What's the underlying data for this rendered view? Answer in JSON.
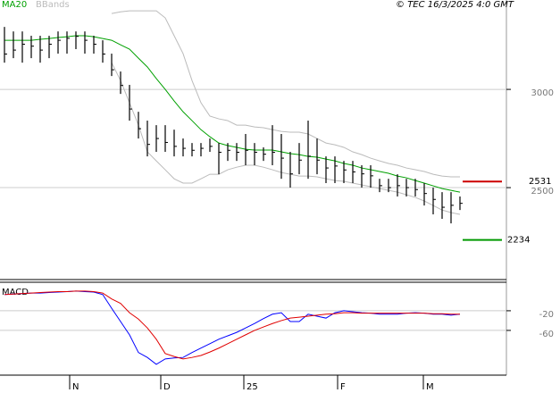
{
  "chart_data": [
    {
      "type": "ohlc",
      "credit": "© TEC 16/3/2025 4:0 GMT",
      "bar_color": "#000000",
      "high": [
        3318,
        3295,
        3295,
        3273,
        3273,
        3273,
        3295,
        3295,
        3295,
        3295,
        3273,
        3250,
        3182,
        3091,
        3023,
        2886,
        2841,
        2818,
        2818,
        2795,
        2750,
        2727,
        2727,
        2750,
        2727,
        2727,
        2727,
        2773,
        2727,
        2705,
        2818,
        2773,
        2682,
        2727,
        2841,
        2750,
        2659,
        2659,
        2636,
        2636,
        2614,
        2614,
        2545,
        2545,
        2568,
        2545,
        2545,
        2523,
        2500,
        2477,
        2477,
        2455
      ],
      "low": [
        3136,
        3159,
        3136,
        3159,
        3136,
        3159,
        3182,
        3182,
        3205,
        3182,
        3182,
        3136,
        3068,
        2977,
        2841,
        2750,
        2659,
        2682,
        2682,
        2659,
        2659,
        2659,
        2659,
        2682,
        2568,
        2636,
        2636,
        2614,
        2614,
        2636,
        2614,
        2545,
        2500,
        2568,
        2545,
        2568,
        2523,
        2523,
        2523,
        2523,
        2500,
        2500,
        2477,
        2477,
        2455,
        2455,
        2455,
        2409,
        2364,
        2341,
        2318,
        2386
      ],
      "close": [
        3180,
        3200,
        3230,
        3220,
        3200,
        3230,
        3250,
        3260,
        3270,
        3250,
        3230,
        3180,
        3100,
        3020,
        2900,
        2800,
        2720,
        2750,
        2730,
        2710,
        2700,
        2690,
        2700,
        2710,
        2680,
        2690,
        2680,
        2690,
        2680,
        2670,
        2680,
        2650,
        2570,
        2640,
        2660,
        2640,
        2600,
        2610,
        2590,
        2580,
        2570,
        2560,
        2510,
        2500,
        2510,
        2500,
        2490,
        2470,
        2440,
        2400,
        2410,
        2420
      ],
      "series": [
        {
          "name": "MA20",
          "color": "#00a000",
          "values": [
            3250,
            3250,
            3250,
            3250,
            3255,
            3259,
            3264,
            3268,
            3273,
            3273,
            3268,
            3259,
            3250,
            3227,
            3205,
            3159,
            3114,
            3055,
            3000,
            2941,
            2886,
            2841,
            2795,
            2759,
            2727,
            2714,
            2705,
            2695,
            2691,
            2691,
            2691,
            2682,
            2673,
            2668,
            2659,
            2655,
            2645,
            2636,
            2623,
            2614,
            2600,
            2591,
            2582,
            2573,
            2559,
            2550,
            2536,
            2523,
            2509,
            2495,
            2486,
            2477
          ]
        },
        {
          "name": "BBands",
          "color": "#bbbbbb",
          "upper": [
            null,
            null,
            null,
            null,
            null,
            null,
            null,
            null,
            null,
            null,
            null,
            null,
            3386,
            3395,
            3400,
            3400,
            3400,
            3400,
            3364,
            3273,
            3182,
            3045,
            2932,
            2864,
            2850,
            2841,
            2818,
            2818,
            2809,
            2805,
            2795,
            2786,
            2782,
            2782,
            2773,
            2750,
            2727,
            2718,
            2705,
            2682,
            2668,
            2650,
            2636,
            2623,
            2614,
            2600,
            2591,
            2582,
            2568,
            2559,
            2555,
            2555
          ],
          "lower": [
            null,
            null,
            null,
            null,
            null,
            null,
            null,
            null,
            null,
            null,
            null,
            null,
            3136,
            3045,
            2932,
            2818,
            2682,
            2636,
            2591,
            2545,
            2523,
            2523,
            2545,
            2568,
            2568,
            2591,
            2604,
            2614,
            2614,
            2604,
            2591,
            2577,
            2568,
            2559,
            2559,
            2555,
            2545,
            2536,
            2532,
            2523,
            2514,
            2505,
            2495,
            2486,
            2477,
            2464,
            2450,
            2432,
            2409,
            2386,
            2373,
            2364
          ]
        }
      ],
      "ylim": [
        2032,
        3455
      ],
      "yticks": [
        3000,
        2500
      ],
      "grid": true,
      "markers": [
        {
          "value": 2531,
          "color": "#cc0000"
        },
        {
          "value": 2234,
          "color": "#009900"
        }
      ],
      "xticks": [
        {
          "value": 7.3,
          "label": "N"
        },
        {
          "value": 17.5,
          "label": "D"
        },
        {
          "value": 26.8,
          "label": "25"
        },
        {
          "value": 37.3,
          "label": "F"
        },
        {
          "value": 46.9,
          "label": "M"
        }
      ]
    },
    {
      "type": "line",
      "title": "MACD",
      "series": [
        {
          "color": "#0000ff",
          "values": [
            13,
            14,
            15,
            16,
            16,
            17,
            18,
            19,
            20,
            19,
            18,
            13,
            -15,
            -42,
            -69,
            -105,
            -115,
            -129,
            -118,
            -116,
            -115,
            -105,
            -96,
            -87,
            -78,
            -71,
            -64,
            -55,
            -46,
            -36,
            -27,
            -24,
            -42,
            -42,
            -27,
            -31,
            -35,
            -24,
            -20,
            -22,
            -24,
            -25,
            -27,
            -27,
            -27,
            -25,
            -24,
            -25,
            -27,
            -27,
            -29,
            -27
          ]
        },
        {
          "color": "#e00000",
          "values": [
            13,
            14,
            15,
            16,
            17,
            18,
            19,
            19,
            20,
            20,
            19,
            16,
            4,
            -5,
            -24,
            -37,
            -55,
            -78,
            -107,
            -113,
            -118,
            -115,
            -111,
            -104,
            -96,
            -87,
            -78,
            -69,
            -60,
            -53,
            -46,
            -40,
            -35,
            -33,
            -31,
            -29,
            -27,
            -26,
            -24,
            -24,
            -25,
            -25,
            -25,
            -25,
            -25,
            -25,
            -25,
            -25,
            -26,
            -26,
            -27,
            -27
          ]
        }
      ],
      "ylim": [
        -151,
        38
      ],
      "yticks": [
        -20,
        -60
      ],
      "grid": true
    }
  ]
}
